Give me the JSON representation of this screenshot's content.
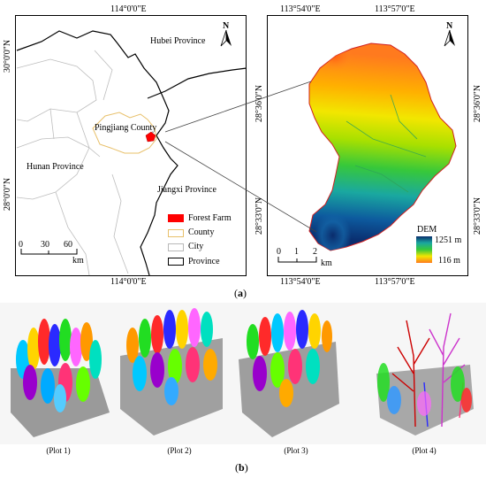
{
  "panel_a": {
    "label": "a",
    "top_lon_left": "114°0'0\"E",
    "bottom_lon_left": "114°0'0\"E",
    "left_lat_top": "30°0'0\"N",
    "left_lat_bottom": "28°0'0\"N",
    "region_labels": {
      "hubei": "Hubei Province",
      "pingjiang": "Pingjiang County",
      "hunan": "Hunan Province",
      "jiangxi": "Jiangxi Province"
    },
    "scale_left": {
      "ticks": [
        "0",
        "30",
        "60"
      ],
      "unit": "km"
    },
    "north_left": "N",
    "legend": [
      {
        "label": "Forest Farm",
        "symbol": "fill",
        "color": "#ff0000"
      },
      {
        "label": "County",
        "symbol": "box",
        "color": "#e8c06a"
      },
      {
        "label": "City",
        "symbol": "box",
        "color": "#b8b8b8"
      },
      {
        "label": "Province",
        "symbol": "box",
        "color": "#000000"
      }
    ],
    "right_top_lons": [
      "113°54'0\"E",
      "113°57'0\"E"
    ],
    "right_bottom_lons": [
      "113°54'0\"E",
      "113°57'0\"E"
    ],
    "right_left_lats": [
      "28°36'0\"N",
      "28°33'0\"N"
    ],
    "right_right_lats": [
      "28°36'0\"N",
      "28°33'0\"N"
    ],
    "north_right": "N",
    "scale_right": {
      "ticks": [
        "0",
        "1",
        "2"
      ],
      "unit": "km"
    },
    "dem": {
      "title": "DEM",
      "max": "1251 m",
      "min": "116 m"
    }
  },
  "panel_b": {
    "label": "b",
    "plots": [
      "(Plot 1)",
      "(Plot 2)",
      "(Plot 3)",
      "(Plot 4)"
    ]
  }
}
